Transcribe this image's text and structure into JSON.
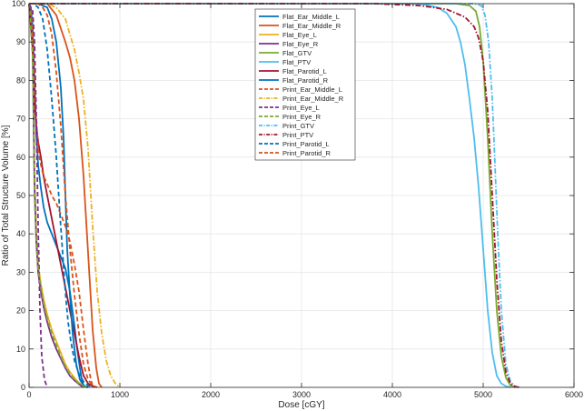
{
  "chart_data": {
    "type": "line",
    "title": "",
    "xlabel": "Dose [cGY]",
    "ylabel": "Ratio of Total Structure Volume [%]",
    "xlim": [
      0,
      6000
    ],
    "ylim": [
      0,
      100
    ],
    "xticks": [
      0,
      1000,
      2000,
      3000,
      4000,
      5000,
      6000
    ],
    "yticks": [
      0,
      10,
      20,
      30,
      40,
      50,
      60,
      70,
      80,
      90,
      100
    ],
    "grid": true,
    "legend_position": "top-center",
    "series": [
      {
        "name": "Flat_Ear_Middle_L",
        "color": "#0072bd",
        "dash": "solid",
        "x": [
          0,
          20,
          40,
          60,
          80,
          100,
          130,
          160,
          200,
          250,
          300,
          350,
          400,
          450,
          500,
          530,
          560,
          580,
          600,
          650
        ],
        "y": [
          100,
          99,
          94,
          80,
          66,
          58,
          52,
          47,
          43,
          40,
          37,
          34,
          31,
          25,
          16,
          10,
          5,
          2,
          0.5,
          0
        ]
      },
      {
        "name": "Flat_Ear_Middle_R",
        "color": "#d95319",
        "dash": "solid",
        "x": [
          0,
          100,
          200,
          300,
          400,
          450,
          500,
          550,
          600,
          650,
          700,
          740,
          770,
          800
        ],
        "y": [
          100,
          100,
          100,
          97,
          90,
          86,
          80,
          70,
          55,
          35,
          15,
          5,
          1,
          0
        ]
      },
      {
        "name": "Flat_Eye_L",
        "color": "#edb120",
        "dash": "solid",
        "x": [
          0,
          40,
          60,
          80,
          100,
          130,
          160,
          200,
          250,
          300,
          350,
          400,
          450,
          500,
          550,
          600,
          650
        ],
        "y": [
          100,
          90,
          55,
          40,
          32,
          27,
          23,
          19,
          15,
          12,
          9,
          6,
          4,
          2.5,
          1.2,
          0.4,
          0
        ]
      },
      {
        "name": "Flat_Eye_R",
        "color": "#7e2f8e",
        "dash": "solid",
        "x": [
          0,
          40,
          60,
          80,
          100,
          130,
          160,
          200,
          250,
          300,
          350,
          400,
          450,
          500,
          550,
          600
        ],
        "y": [
          100,
          88,
          52,
          38,
          30,
          25,
          21,
          17,
          13,
          10,
          7.5,
          5,
          3,
          1.8,
          0.8,
          0
        ]
      },
      {
        "name": "Flat_GTV",
        "color": "#77ac30",
        "dash": "solid",
        "x": [
          0,
          4700,
          4850,
          4920,
          4960,
          5000,
          5050,
          5100,
          5150,
          5200,
          5250,
          5300,
          5350
        ],
        "y": [
          100,
          100,
          99.5,
          98,
          94,
          85,
          65,
          40,
          20,
          8,
          2.5,
          0.5,
          0
        ]
      },
      {
        "name": "Flat_PTV",
        "color": "#4dbeee",
        "dash": "solid",
        "x": [
          0,
          4300,
          4500,
          4600,
          4700,
          4750,
          4800,
          4850,
          4900,
          4950,
          5000,
          5050,
          5100,
          5150,
          5200,
          5250,
          5300
        ],
        "y": [
          100,
          100,
          99,
          97.5,
          94,
          90,
          84,
          75,
          65,
          52,
          36,
          20,
          9,
          3,
          1,
          0.3,
          0
        ]
      },
      {
        "name": "Flat_Parotid_L",
        "color": "#a2142f",
        "dash": "solid",
        "x": [
          0,
          40,
          60,
          80,
          100,
          130,
          160,
          200,
          250,
          300,
          350,
          400,
          450,
          500,
          550,
          600,
          650,
          700,
          720
        ],
        "y": [
          100,
          89,
          75,
          68,
          64,
          60,
          55,
          50,
          44,
          38,
          32,
          26,
          20,
          14,
          8,
          3,
          1,
          0.3,
          0
        ]
      },
      {
        "name": "Flat_Parotid_R",
        "color": "#0072bd",
        "dash": "solid",
        "x": [
          0,
          100,
          200,
          250,
          300,
          350,
          380,
          400,
          420,
          450,
          480,
          520,
          560,
          600,
          620,
          650
        ],
        "y": [
          100,
          100,
          99,
          96,
          90,
          78,
          65,
          50,
          36,
          24,
          14,
          6,
          2,
          0.5,
          0.2,
          0
        ]
      },
      {
        "name": "Print_Ear_Middle_L",
        "color": "#d95319",
        "dash": "dashed",
        "x": [
          0,
          20,
          40,
          60,
          80,
          100,
          130,
          160,
          200,
          250,
          300,
          350,
          400,
          450,
          500,
          550,
          600,
          650,
          680,
          700,
          730
        ],
        "y": [
          100,
          99,
          92,
          80,
          70,
          62,
          58,
          55,
          53,
          50,
          48,
          45,
          42,
          38,
          32,
          25,
          15,
          6,
          2,
          0.5,
          0
        ]
      },
      {
        "name": "Print_Ear_Middle_R",
        "color": "#edb120",
        "dash": "dashdot",
        "x": [
          0,
          200,
          300,
          400,
          500,
          550,
          600,
          650,
          700,
          750,
          800,
          850,
          900,
          950,
          1000
        ],
        "y": [
          100,
          100,
          99,
          96,
          88,
          82,
          75,
          62,
          42,
          25,
          14,
          7,
          3,
          1,
          0
        ]
      },
      {
        "name": "Print_Eye_L",
        "color": "#7e2f8e",
        "dash": "dashed",
        "x": [
          0,
          40,
          60,
          80,
          100,
          120,
          140,
          170,
          200
        ],
        "y": [
          100,
          98,
          90,
          70,
          42,
          20,
          8,
          2,
          0
        ]
      },
      {
        "name": "Print_Eye_R",
        "color": "#77ac30",
        "dash": "dashed",
        "x": [
          0,
          40,
          60,
          80,
          100,
          130,
          160,
          200,
          250,
          300,
          350,
          400,
          450,
          500,
          550,
          600,
          650
        ],
        "y": [
          100,
          86,
          50,
          37,
          31,
          26,
          22,
          18,
          14,
          11,
          8,
          5.5,
          3.5,
          2,
          1,
          0.3,
          0
        ]
      },
      {
        "name": "Print_GTV",
        "color": "#4dbeee",
        "dash": "dashdot",
        "x": [
          0,
          4900,
          4980,
          5020,
          5060,
          5100,
          5130,
          5160,
          5200,
          5250,
          5300,
          5350,
          5380
        ],
        "y": [
          100,
          100,
          99.5,
          97,
          90,
          75,
          58,
          40,
          20,
          6,
          1.5,
          0.3,
          0
        ]
      },
      {
        "name": "Print_PTV",
        "color": "#a2142f",
        "dash": "dashdot",
        "x": [
          0,
          3800,
          4300,
          4600,
          4800,
          4900,
          4950,
          5000,
          5050,
          5100,
          5150,
          5200,
          5250,
          5300,
          5350,
          5400
        ],
        "y": [
          100,
          100,
          99.5,
          98.5,
          96.5,
          94,
          91,
          85,
          72,
          50,
          28,
          12,
          4,
          1,
          0.2,
          0
        ]
      },
      {
        "name": "Print_Parotid_L",
        "color": "#0072bd",
        "dash": "dashed",
        "x": [
          0,
          50,
          100,
          150,
          200,
          250,
          300,
          340,
          370,
          390,
          410,
          430,
          460,
          500,
          550,
          600,
          650,
          700
        ],
        "y": [
          100,
          100,
          99,
          96,
          88,
          75,
          60,
          45,
          35,
          28,
          22,
          17,
          12,
          7,
          3.5,
          1.5,
          0.5,
          0
        ]
      },
      {
        "name": "Print_Parotid_R",
        "color": "#d95319",
        "dash": "dashed",
        "x": [
          0,
          50,
          100,
          150,
          200,
          250,
          300,
          350,
          400,
          450,
          500,
          550,
          600,
          650,
          700,
          750
        ],
        "y": [
          100,
          100,
          100,
          99,
          97,
          92,
          82,
          68,
          50,
          36,
          24,
          14,
          6,
          2,
          0.5,
          0
        ]
      }
    ]
  }
}
